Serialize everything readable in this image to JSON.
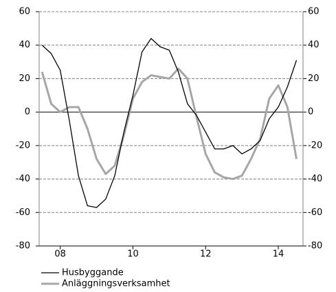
{
  "chart_data": {
    "type": "line",
    "x": [
      7.5,
      7.75,
      8.0,
      8.25,
      8.5,
      8.75,
      9.0,
      9.25,
      9.5,
      9.75,
      10.0,
      10.25,
      10.5,
      10.75,
      11.0,
      11.25,
      11.5,
      11.75,
      12.0,
      12.25,
      12.5,
      12.75,
      13.0,
      13.25,
      13.5,
      13.75,
      14.0,
      14.25,
      14.5
    ],
    "series": [
      {
        "name": "Husbyggande",
        "color": "#000000",
        "values": [
          40,
          35,
          25,
          -5,
          -38,
          -56,
          -57,
          -52,
          -38,
          -12,
          10,
          36,
          44,
          39,
          37,
          24,
          5,
          -2,
          -12,
          -22,
          -22,
          -20,
          -25,
          -22,
          -17,
          -4,
          3,
          15,
          31
        ]
      },
      {
        "name": "Anläggningsverksamhet",
        "color": "#a6a6a6",
        "axis": "y2",
        "values": [
          24,
          5,
          0,
          3,
          3,
          -10,
          -28,
          -37,
          -32,
          -14,
          8,
          18,
          22,
          21,
          20,
          26,
          20,
          -3,
          -25,
          -36,
          -39,
          -40,
          -38,
          -28,
          -16,
          8,
          16,
          3,
          -28
        ]
      }
    ],
    "xlim": [
      7.42,
      14.68
    ],
    "xticks": [
      {
        "value": 8,
        "label": "08"
      },
      {
        "value": 10,
        "label": "10"
      },
      {
        "value": 12,
        "label": "12"
      },
      {
        "value": 14,
        "label": "14"
      }
    ],
    "ylim": [
      -80,
      60
    ],
    "yticks": [
      -80,
      -60,
      -40,
      -20,
      0,
      20,
      40,
      60
    ],
    "y2lim": [
      -80,
      60
    ],
    "y2ticks": [
      -80,
      -60,
      -40,
      -20,
      0,
      20,
      40,
      60
    ],
    "grid": true,
    "legend": "bottom-left"
  }
}
